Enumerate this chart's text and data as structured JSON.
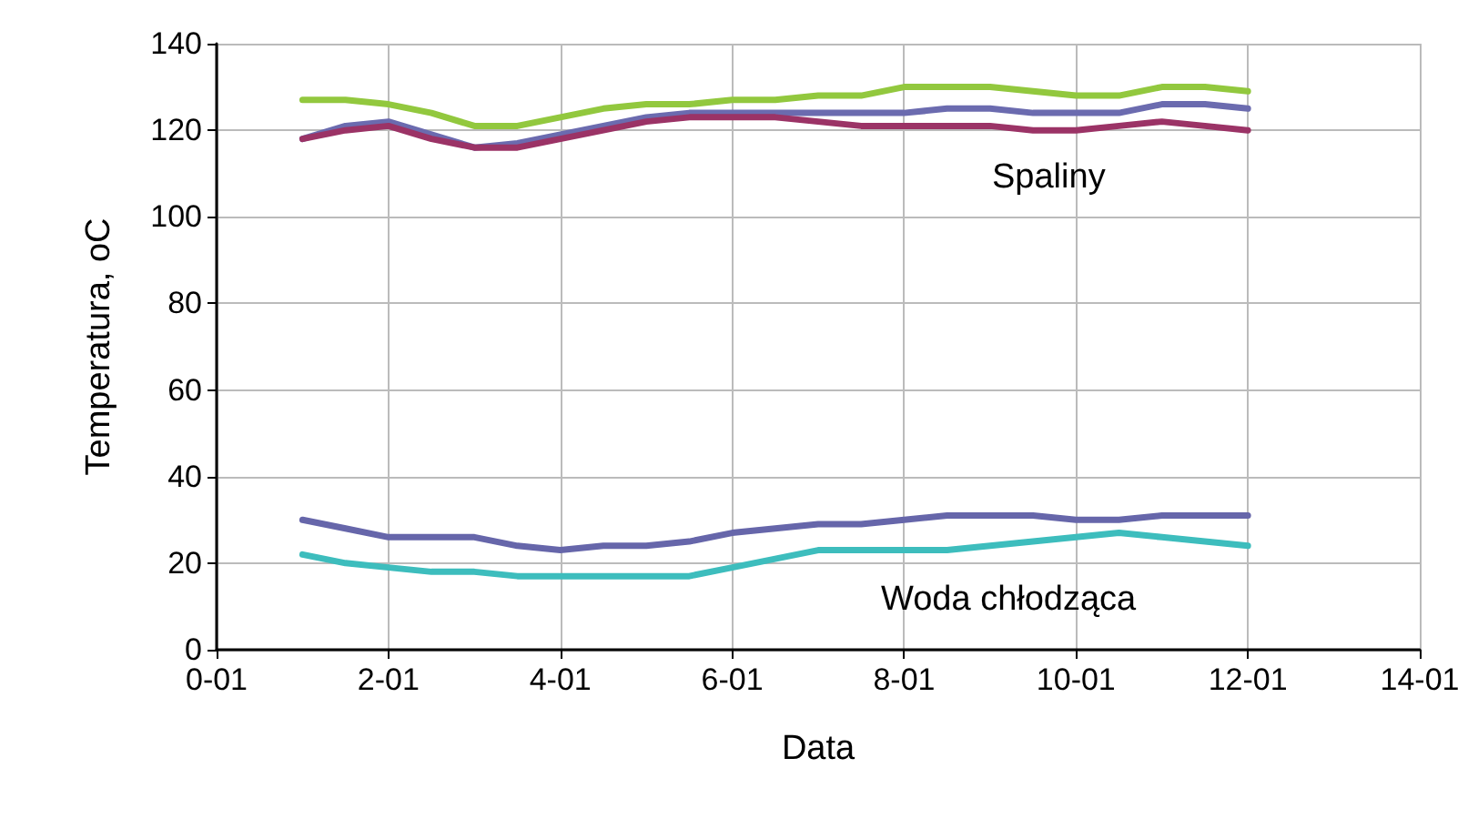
{
  "chart_data": {
    "type": "line",
    "xlabel": "Data",
    "ylabel": "Temperatura, oC",
    "categories": [
      "0-01",
      null,
      null,
      null,
      "2-01",
      null,
      null,
      null,
      "4-01",
      null,
      null,
      null,
      "6-01",
      null,
      null,
      null,
      "8-01",
      null,
      null,
      null,
      "10-01",
      null,
      null,
      null,
      "12-01",
      null,
      null,
      null,
      "14-01"
    ],
    "ylim": [
      0,
      140
    ],
    "yticks": [
      0,
      20,
      40,
      60,
      80,
      100,
      120,
      140
    ],
    "grid": true,
    "marker": "none",
    "line_style": "solid",
    "annotations": [
      "Spaliny",
      "Woda chłodząca"
    ],
    "series": [
      {
        "color": "#92c83e",
        "values": [
          null,
          null,
          127,
          127,
          126,
          124,
          121,
          121,
          123,
          125,
          126,
          126,
          127,
          127,
          128,
          128,
          130,
          130,
          130,
          129,
          128,
          128,
          130,
          130,
          129,
          null,
          null,
          null,
          null
        ]
      },
      {
        "color": "#6b6baf",
        "values": [
          null,
          null,
          118,
          121,
          122,
          119,
          116,
          117,
          119,
          121,
          123,
          124,
          124,
          124,
          124,
          124,
          124,
          125,
          125,
          124,
          124,
          124,
          126,
          126,
          125,
          null,
          null,
          null,
          null
        ]
      },
      {
        "color": "#9b3366",
        "values": [
          null,
          null,
          118,
          120,
          121,
          118,
          116,
          116,
          118,
          120,
          122,
          123,
          123,
          123,
          122,
          121,
          121,
          121,
          121,
          120,
          120,
          121,
          122,
          121,
          120,
          null,
          null,
          null,
          null
        ]
      },
      {
        "color": "#6666aa",
        "values": [
          null,
          null,
          30,
          28,
          26,
          26,
          26,
          24,
          23,
          24,
          24,
          25,
          27,
          28,
          29,
          29,
          30,
          31,
          31,
          31,
          30,
          30,
          31,
          31,
          31,
          null,
          null,
          null,
          null
        ]
      },
      {
        "color": "#3dbdbd",
        "values": [
          null,
          null,
          22,
          20,
          19,
          18,
          18,
          17,
          17,
          17,
          17,
          17,
          19,
          21,
          23,
          23,
          23,
          23,
          24,
          25,
          26,
          27,
          26,
          25,
          24,
          null,
          null,
          null,
          null
        ]
      }
    ]
  }
}
